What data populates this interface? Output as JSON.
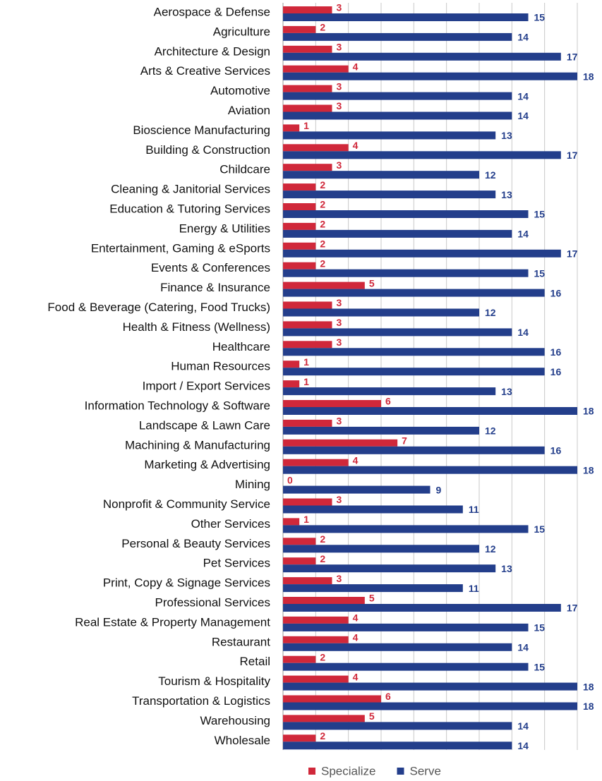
{
  "chart_data": {
    "type": "barh",
    "categories": [
      "Aerospace & Defense",
      "Agriculture",
      "Architecture & Design",
      "Arts & Creative Services",
      "Automotive",
      "Aviation",
      "Bioscience Manufacturing",
      "Building & Construction",
      "Childcare",
      "Cleaning & Janitorial Services",
      "Education & Tutoring Services",
      "Energy & Utilities",
      "Entertainment, Gaming & eSports",
      "Events & Conferences",
      "Finance & Insurance",
      "Food & Beverage (Catering, Food Trucks)",
      "Health & Fitness (Wellness)",
      "Healthcare",
      "Human Resources",
      "Import / Export Services",
      "Information Technology & Software",
      "Landscape & Lawn Care",
      "Machining & Manufacturing",
      "Marketing & Advertising",
      "Mining",
      "Nonprofit & Community Service",
      "Other Services",
      "Personal & Beauty Services",
      "Pet Services",
      "Print, Copy & Signage Services",
      "Professional Services",
      "Real Estate & Property Management",
      "Restaurant",
      "Retail",
      "Tourism & Hospitality",
      "Transportation & Logistics",
      "Warehousing",
      "Wholesale"
    ],
    "series": [
      {
        "name": "Specialize",
        "color": "#d0283a",
        "values": [
          3,
          2,
          3,
          4,
          3,
          3,
          1,
          4,
          3,
          2,
          2,
          2,
          2,
          2,
          5,
          3,
          3,
          3,
          1,
          1,
          6,
          3,
          7,
          4,
          0,
          3,
          1,
          2,
          2,
          3,
          5,
          4,
          4,
          2,
          4,
          6,
          5,
          2
        ]
      },
      {
        "name": "Serve",
        "color": "#233e8b",
        "values": [
          15,
          14,
          17,
          18,
          14,
          14,
          13,
          17,
          12,
          13,
          15,
          14,
          17,
          15,
          16,
          12,
          14,
          16,
          16,
          13,
          18,
          12,
          16,
          18,
          9,
          11,
          15,
          12,
          13,
          11,
          17,
          15,
          14,
          15,
          18,
          18,
          14,
          14
        ]
      }
    ],
    "xlim": [
      0,
      18
    ],
    "xticks": [
      2,
      4,
      6,
      8,
      10,
      12,
      14,
      16,
      18
    ],
    "grid": true,
    "legend": "bottom"
  }
}
